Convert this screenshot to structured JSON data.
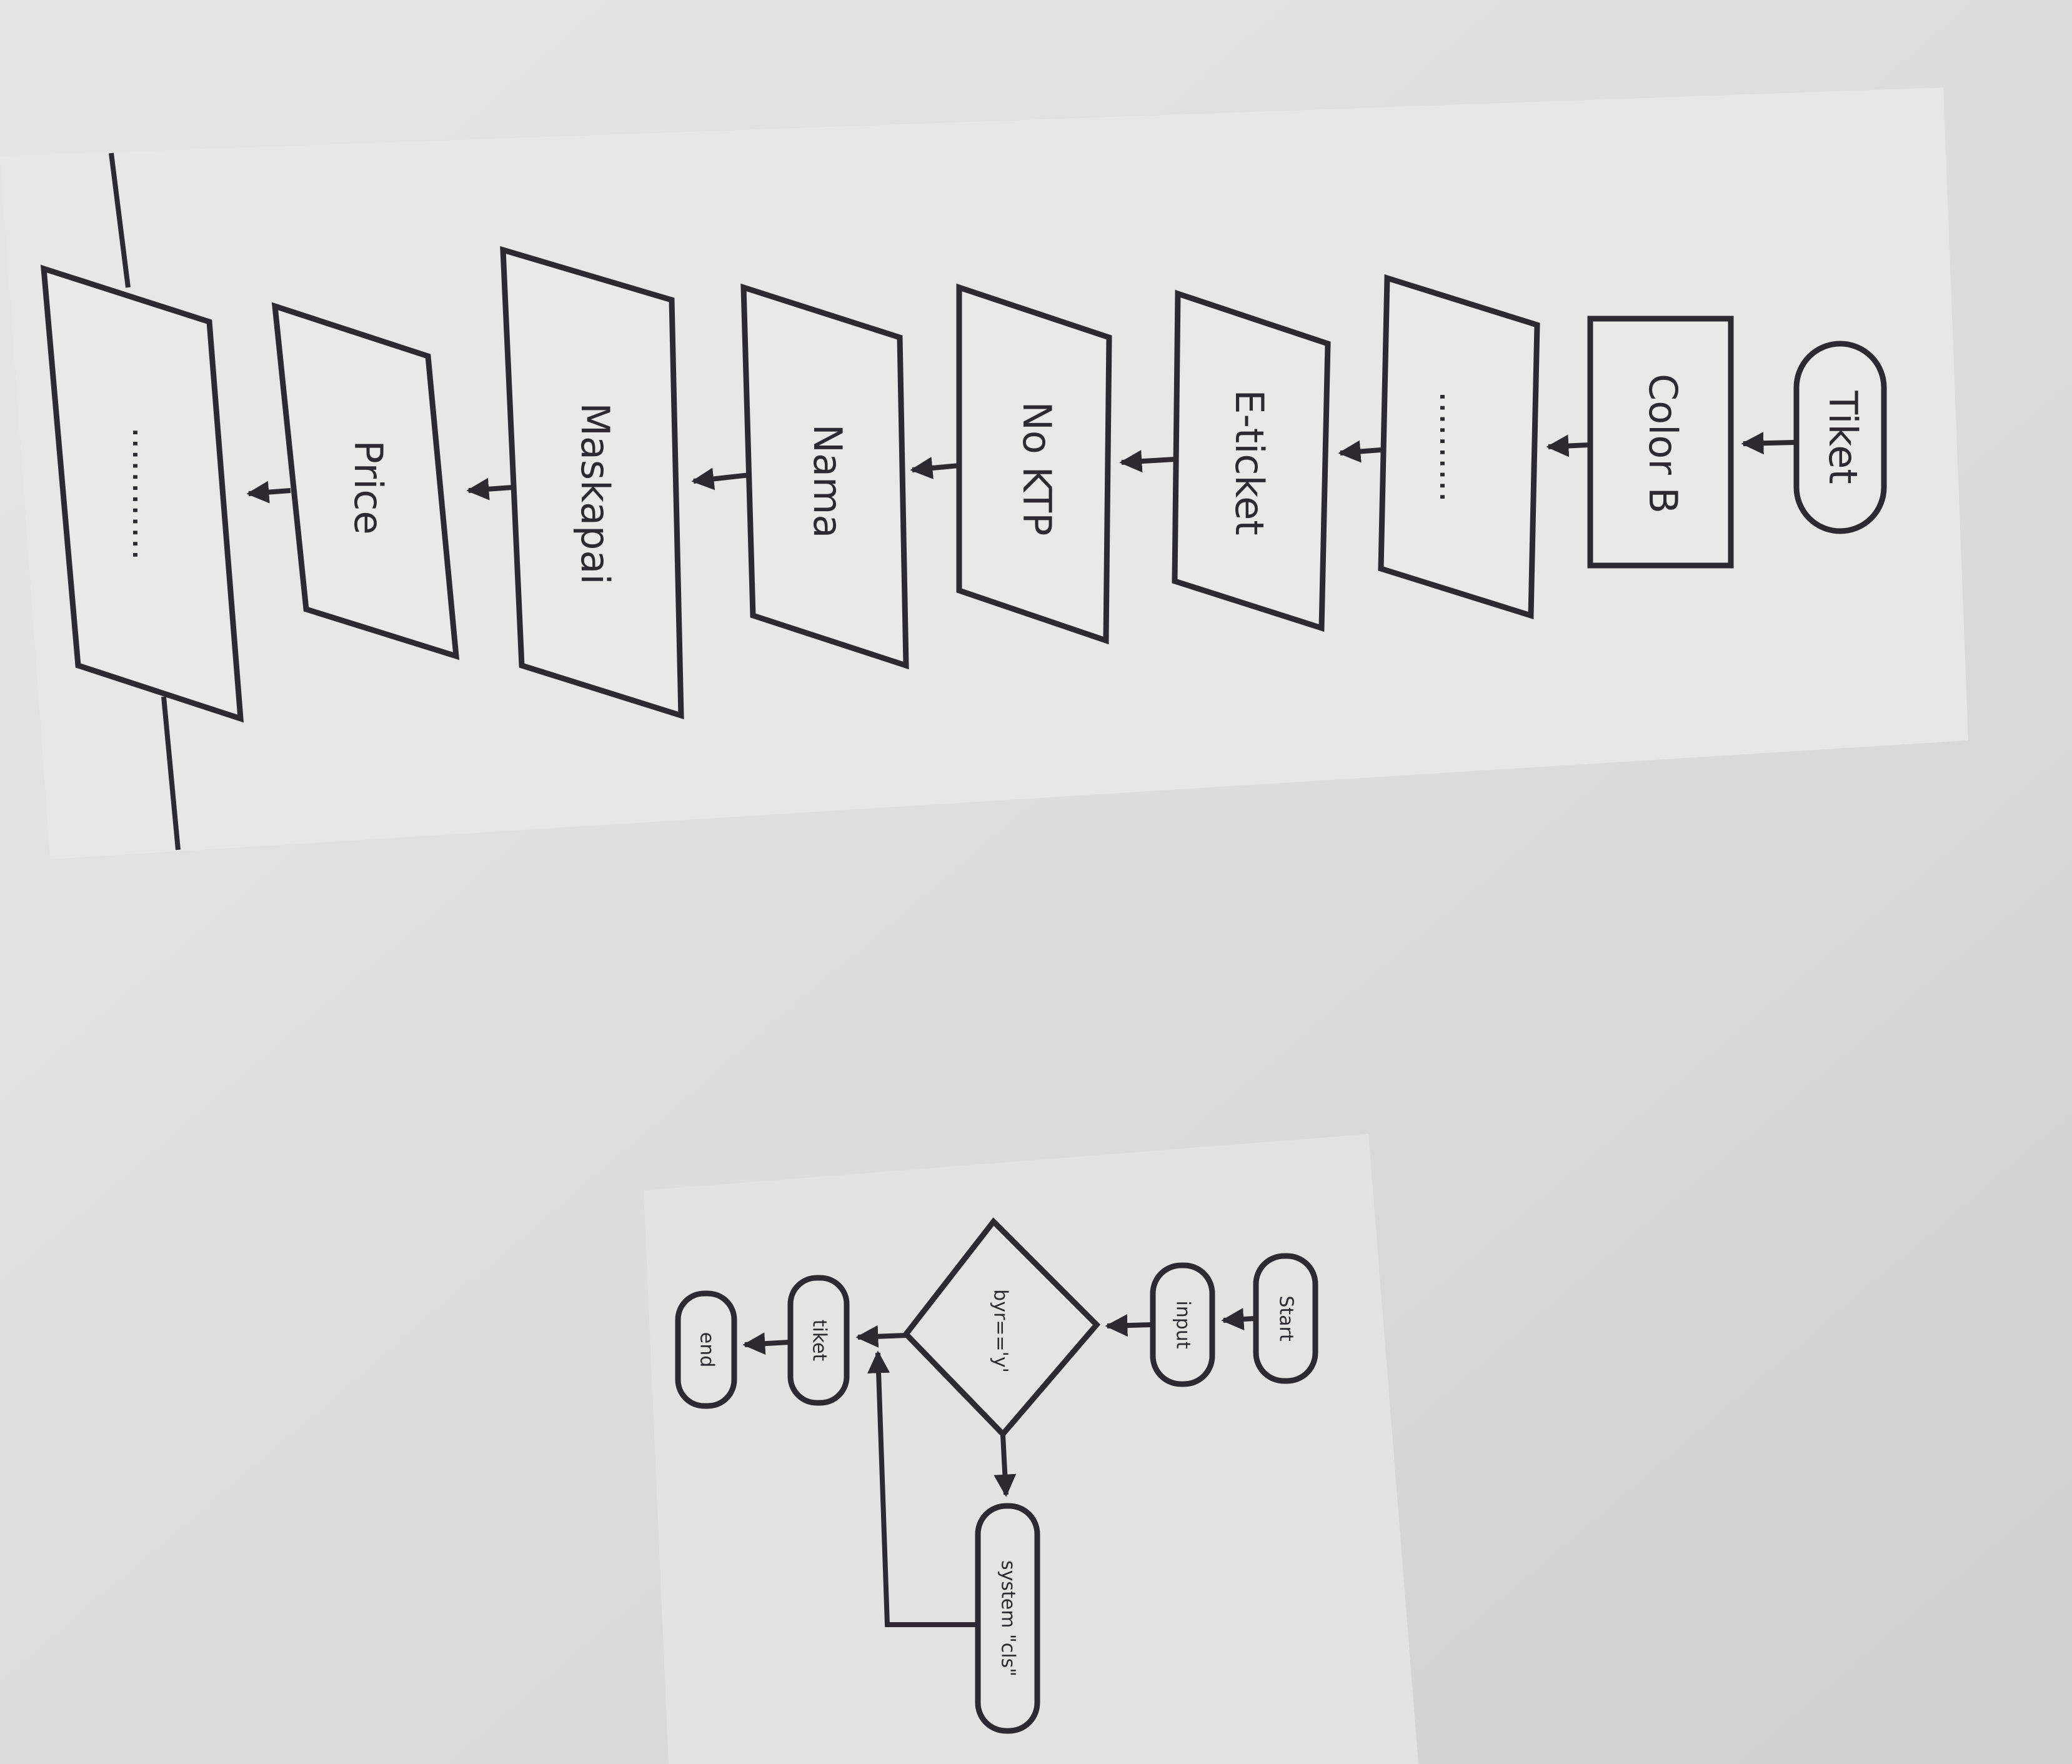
{
  "flowchart_right": {
    "nodes": [
      {
        "id": "tiket",
        "label": "Tiket",
        "shape": "terminator"
      },
      {
        "id": "color",
        "label": "Color B",
        "shape": "process"
      },
      {
        "id": "dots1",
        "label": "..........",
        "shape": "io"
      },
      {
        "id": "eticket",
        "label": "E-ticket",
        "shape": "io"
      },
      {
        "id": "noktp",
        "label": "No KTP",
        "shape": "io"
      },
      {
        "id": "nama",
        "label": "Nama",
        "shape": "io"
      },
      {
        "id": "maskapai",
        "label": "Maskapai",
        "shape": "io"
      },
      {
        "id": "price",
        "label": "Price",
        "shape": "io"
      },
      {
        "id": "dots2",
        "label": "............",
        "shape": "io"
      }
    ]
  },
  "flowchart_left": {
    "nodes": [
      {
        "id": "start",
        "label": "Start",
        "shape": "terminator"
      },
      {
        "id": "input",
        "label": "input",
        "shape": "terminator"
      },
      {
        "id": "decision",
        "label": "byr=='y'",
        "shape": "decision"
      },
      {
        "id": "tiket2",
        "label": "tiket",
        "shape": "terminator"
      },
      {
        "id": "end",
        "label": "end",
        "shape": "terminator"
      },
      {
        "id": "cls",
        "label": "system \"cls\"",
        "shape": "terminator"
      }
    ]
  },
  "colors": {
    "background": "#d9dad7",
    "paper": "#e7e8e5",
    "ink": "#2c2a30"
  }
}
